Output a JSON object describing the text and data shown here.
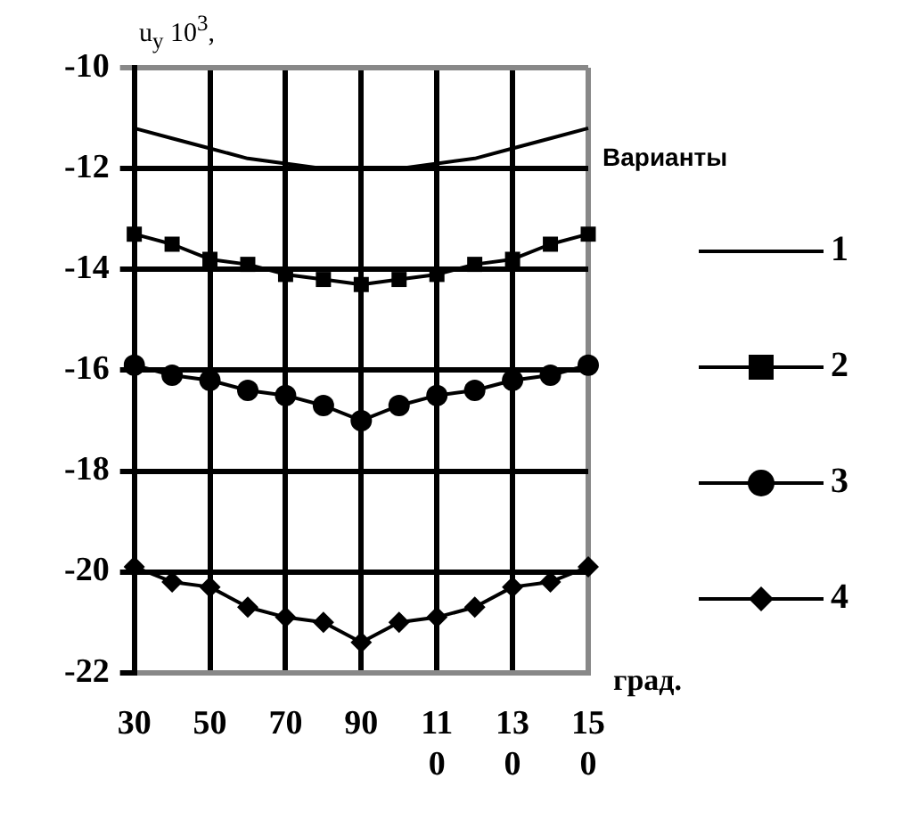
{
  "chart_data": {
    "type": "line",
    "ylabel": "u$_{y}$ 10$^{3}$,",
    "xlabel": "град.",
    "legend_title": "Варианты",
    "legend": "right",
    "grid": true,
    "line_style": "solid",
    "categories": [
      "30",
      null,
      "50",
      null,
      "70",
      null,
      "90",
      null,
      "110",
      null,
      "130",
      null,
      "150"
    ],
    "ylim": [
      -22,
      -10
    ],
    "yticks": [
      -22,
      -20,
      -18,
      -16,
      -14,
      -12,
      -10
    ],
    "series": [
      {
        "name": "1",
        "color": "#000000",
        "marker": "none",
        "values": [
          -11.2,
          -11.4,
          -11.6,
          -11.8,
          -11.9,
          -12.0,
          -12.0,
          -12.0,
          -11.9,
          -11.8,
          -11.6,
          -11.4,
          -11.2
        ]
      },
      {
        "name": "2",
        "color": "#000000",
        "marker": "square",
        "values": [
          -13.3,
          -13.5,
          -13.8,
          -13.9,
          -14.1,
          -14.2,
          -14.3,
          -14.2,
          -14.1,
          -13.9,
          -13.8,
          -13.5,
          -13.3
        ]
      },
      {
        "name": "3",
        "color": "#000000",
        "marker": "circle",
        "values": [
          -15.9,
          -16.1,
          -16.2,
          -16.4,
          -16.5,
          -16.7,
          -17.0,
          -16.7,
          -16.5,
          -16.4,
          -16.2,
          -16.1,
          -15.9
        ]
      },
      {
        "name": "4",
        "color": "#000000",
        "marker": "diamond",
        "values": [
          -19.9,
          -20.2,
          -20.3,
          -20.7,
          -20.9,
          -21.0,
          -21.4,
          -21.0,
          -20.9,
          -20.7,
          -20.3,
          -20.2,
          -19.9
        ]
      }
    ]
  }
}
